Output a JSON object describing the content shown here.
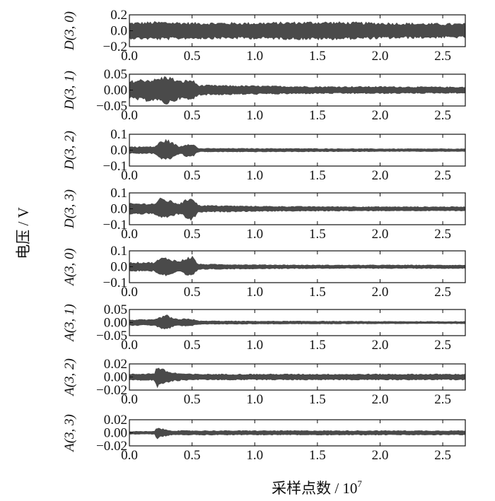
{
  "figure": {
    "ylabel": "电压 / V",
    "xlabel_main": "采样点数 / 10",
    "xlabel_exp": "7"
  },
  "colors": {
    "signal": "#4a4a4a",
    "axis": "#111111",
    "background": "#ffffff"
  },
  "chart_data": [
    {
      "type": "line",
      "ylabel": "D(3, 0)",
      "xlim": [
        0,
        2.68
      ],
      "ylim": [
        -0.2,
        0.2
      ],
      "xticks": [
        0.0,
        0.5,
        1.0,
        1.5,
        2.0,
        2.5
      ],
      "xticklabels": [
        "0.0",
        "0.5",
        "1.0",
        "1.5",
        "2.0",
        "2.5"
      ],
      "yticks": [
        0.2,
        0.0,
        -0.2
      ],
      "yticklabels": [
        "0.2",
        "0.0",
        "−0.2"
      ],
      "series": [
        {
          "x": [
            0.0,
            0.25,
            0.5,
            1.0,
            1.5,
            2.0,
            2.5,
            2.68
          ],
          "y": [
            0.09,
            0.1,
            0.09,
            0.09,
            0.1,
            0.09,
            0.08,
            0.08
          ]
        }
      ]
    },
    {
      "type": "line",
      "ylabel": "D(3, 1)",
      "xlim": [
        0,
        2.68
      ],
      "ylim": [
        -0.05,
        0.05
      ],
      "xticks": [
        0.0,
        0.5,
        1.0,
        1.5,
        2.0,
        2.5
      ],
      "xticklabels": [
        "0.0",
        "0.5",
        "1.0",
        "1.5",
        "2.0",
        "2.5"
      ],
      "yticks": [
        0.05,
        0.0,
        -0.05
      ],
      "yticklabels": [
        "0.05",
        "0.00",
        "−0.05"
      ],
      "series": [
        {
          "x": [
            0.0,
            0.1,
            0.2,
            0.3,
            0.4,
            0.5,
            0.55,
            1.0,
            1.5,
            2.0,
            2.5,
            2.68
          ],
          "y": [
            0.025,
            0.03,
            0.03,
            0.04,
            0.025,
            0.03,
            0.014,
            0.012,
            0.01,
            0.01,
            0.009,
            0.009
          ]
        }
      ]
    },
    {
      "type": "line",
      "ylabel": "D(3, 2)",
      "xlim": [
        0,
        2.68
      ],
      "ylim": [
        -0.1,
        0.1
      ],
      "xticks": [
        0.0,
        0.5,
        1.0,
        1.5,
        2.0,
        2.5
      ],
      "xticklabels": [
        "0.0",
        "0.5",
        "1.0",
        "1.5",
        "2.0",
        "2.5"
      ],
      "yticks": [
        0.1,
        0.0,
        -0.1
      ],
      "yticklabels": [
        "0.1",
        "0.0",
        "−0.1"
      ],
      "series": [
        {
          "x": [
            0.0,
            0.2,
            0.25,
            0.3,
            0.35,
            0.4,
            0.45,
            0.5,
            0.55,
            1.0,
            1.5,
            2.0,
            2.5,
            2.68
          ],
          "y": [
            0.02,
            0.02,
            0.05,
            0.06,
            0.04,
            0.02,
            0.035,
            0.04,
            0.01,
            0.01,
            0.009,
            0.008,
            0.008,
            0.008
          ]
        }
      ]
    },
    {
      "type": "line",
      "ylabel": "D(3, 3)",
      "xlim": [
        0,
        2.68
      ],
      "ylim": [
        -0.1,
        0.1
      ],
      "xticks": [
        0.0,
        0.5,
        1.0,
        1.5,
        2.0,
        2.5
      ],
      "xticklabels": [
        "0.0",
        "0.5",
        "1.0",
        "1.5",
        "2.0",
        "2.5"
      ],
      "yticks": [
        0.1,
        0.0,
        -0.1
      ],
      "yticklabels": [
        "0.1",
        "0.0",
        "−0.1"
      ],
      "series": [
        {
          "x": [
            0.0,
            0.2,
            0.25,
            0.3,
            0.35,
            0.4,
            0.45,
            0.5,
            0.55,
            1.0,
            1.5,
            2.0,
            2.5,
            2.68
          ],
          "y": [
            0.03,
            0.03,
            0.06,
            0.05,
            0.04,
            0.03,
            0.05,
            0.07,
            0.02,
            0.015,
            0.013,
            0.012,
            0.012,
            0.012
          ]
        }
      ]
    },
    {
      "type": "line",
      "ylabel": "A(3, 0)",
      "xlim": [
        0,
        2.68
      ],
      "ylim": [
        -0.1,
        0.1
      ],
      "xticks": [
        0.0,
        0.5,
        1.0,
        1.5,
        2.0,
        2.5
      ],
      "xticklabels": [
        "0.0",
        "0.5",
        "1.0",
        "1.5",
        "2.0",
        "2.5"
      ],
      "yticks": [
        0.1,
        0.0,
        -0.1
      ],
      "yticklabels": [
        "0.1",
        "0.0",
        "−0.1"
      ],
      "series": [
        {
          "x": [
            0.0,
            0.2,
            0.25,
            0.3,
            0.35,
            0.4,
            0.45,
            0.5,
            0.55,
            1.0,
            1.5,
            2.0,
            2.5,
            2.68
          ],
          "y": [
            0.025,
            0.025,
            0.05,
            0.05,
            0.04,
            0.03,
            0.05,
            0.06,
            0.015,
            0.012,
            0.01,
            0.01,
            0.01,
            0.01
          ]
        }
      ]
    },
    {
      "type": "line",
      "ylabel": "A(3, 1)",
      "xlim": [
        0,
        2.68
      ],
      "ylim": [
        -0.05,
        0.05
      ],
      "xticks": [
        0.0,
        0.5,
        1.0,
        1.5,
        2.0,
        2.5
      ],
      "xticklabels": [
        "0.0",
        "0.5",
        "1.0",
        "1.5",
        "2.0",
        "2.5"
      ],
      "yticks": [
        0.05,
        0.0,
        -0.05
      ],
      "yticklabels": [
        "0.05",
        "0.00",
        "−0.05"
      ],
      "series": [
        {
          "x": [
            0.0,
            0.2,
            0.25,
            0.3,
            0.35,
            0.4,
            0.45,
            0.5,
            0.55,
            1.0,
            1.5,
            2.0,
            2.5,
            2.68
          ],
          "y": [
            0.01,
            0.01,
            0.02,
            0.025,
            0.015,
            0.01,
            0.015,
            0.012,
            0.006,
            0.005,
            0.005,
            0.004,
            0.004,
            0.004
          ]
        }
      ]
    },
    {
      "type": "line",
      "ylabel": "A(3, 2)",
      "xlim": [
        0,
        2.68
      ],
      "ylim": [
        -0.02,
        0.02
      ],
      "xticks": [
        0.0,
        0.5,
        1.0,
        1.5,
        2.0,
        2.5
      ],
      "xticklabels": [
        "0.0",
        "0.5",
        "1.0",
        "1.5",
        "2.0",
        "2.5"
      ],
      "yticks": [
        0.02,
        0.0,
        -0.02
      ],
      "yticklabels": [
        "0.02",
        "0.00",
        "−0.02"
      ],
      "series": [
        {
          "x": [
            0.0,
            0.2,
            0.22,
            0.25,
            0.3,
            0.35,
            0.4,
            0.5,
            1.0,
            1.5,
            2.0,
            2.5,
            2.68
          ],
          "y": [
            0.004,
            0.005,
            0.015,
            0.012,
            0.008,
            0.006,
            0.005,
            0.004,
            0.004,
            0.004,
            0.004,
            0.004,
            0.004
          ]
        }
      ]
    },
    {
      "type": "line",
      "ylabel": "A(3, 3)",
      "xlim": [
        0,
        2.68
      ],
      "ylim": [
        -0.02,
        0.02
      ],
      "xticks": [
        0.0,
        0.5,
        1.0,
        1.5,
        2.0,
        2.5
      ],
      "xticklabels": [
        "0.0",
        "0.5",
        "1.0",
        "1.5",
        "2.0",
        "2.5"
      ],
      "yticks": [
        0.02,
        0.0,
        -0.02
      ],
      "yticklabels": [
        "0.02",
        "0.00",
        "−0.02"
      ],
      "series": [
        {
          "x": [
            0.0,
            0.2,
            0.22,
            0.25,
            0.3,
            0.35,
            0.4,
            0.5,
            1.0,
            1.5,
            2.0,
            2.5,
            2.68
          ],
          "y": [
            0.002,
            0.002,
            0.008,
            0.006,
            0.004,
            0.003,
            0.003,
            0.003,
            0.003,
            0.003,
            0.003,
            0.003,
            0.003
          ]
        }
      ]
    }
  ]
}
